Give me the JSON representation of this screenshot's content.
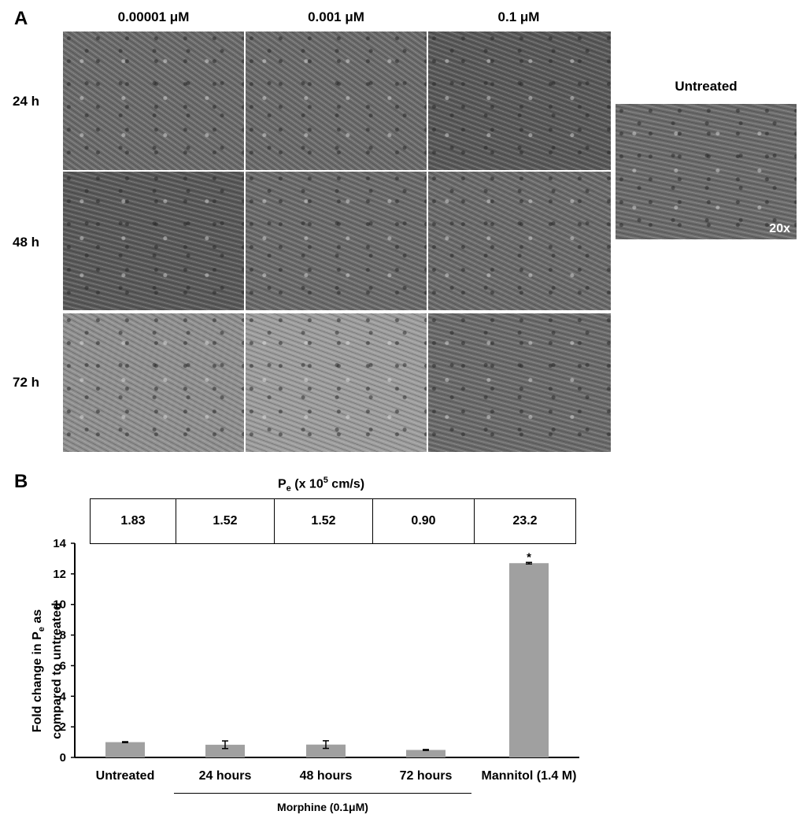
{
  "panel_a": {
    "letter": "A",
    "columns": [
      "0.00001 μM",
      "0.001 μM",
      "0.1 μM"
    ],
    "rows": [
      "24 h",
      "48 h",
      "72 h"
    ],
    "untreated_label": "Untreated",
    "magnification": "20x"
  },
  "panel_b": {
    "letter": "B",
    "pe_title_main": "P",
    "pe_title_sub": "e",
    "pe_title_mid": " (x 10",
    "pe_title_sup": "5",
    "pe_title_end": " cm/s)",
    "pe_values": [
      "1.83",
      "1.52",
      "1.52",
      "0.90",
      "23.2"
    ],
    "group_label": "Morphine (0.1μM)",
    "ylabel_line1_a": "Fold change in P",
    "ylabel_line1_sub": "e",
    "ylabel_line1_b": " as",
    "ylabel_line2": "compared to untreated"
  },
  "chart_data": {
    "type": "bar",
    "categories": [
      "Untreated",
      "24 hours",
      "48 hours",
      "72 hours",
      "Mannitol  (1.4 M)"
    ],
    "values": [
      1.0,
      0.83,
      0.84,
      0.49,
      12.7
    ],
    "errors": [
      0.03,
      0.25,
      0.25,
      0.03,
      0.05
    ],
    "significance": [
      "",
      "",
      "",
      "",
      "*"
    ],
    "ylim": [
      0,
      14
    ],
    "yticks": [
      "0",
      "2",
      "4",
      "6",
      "8",
      "10",
      "12",
      "14"
    ],
    "bar_color": "#a0a0a0"
  }
}
